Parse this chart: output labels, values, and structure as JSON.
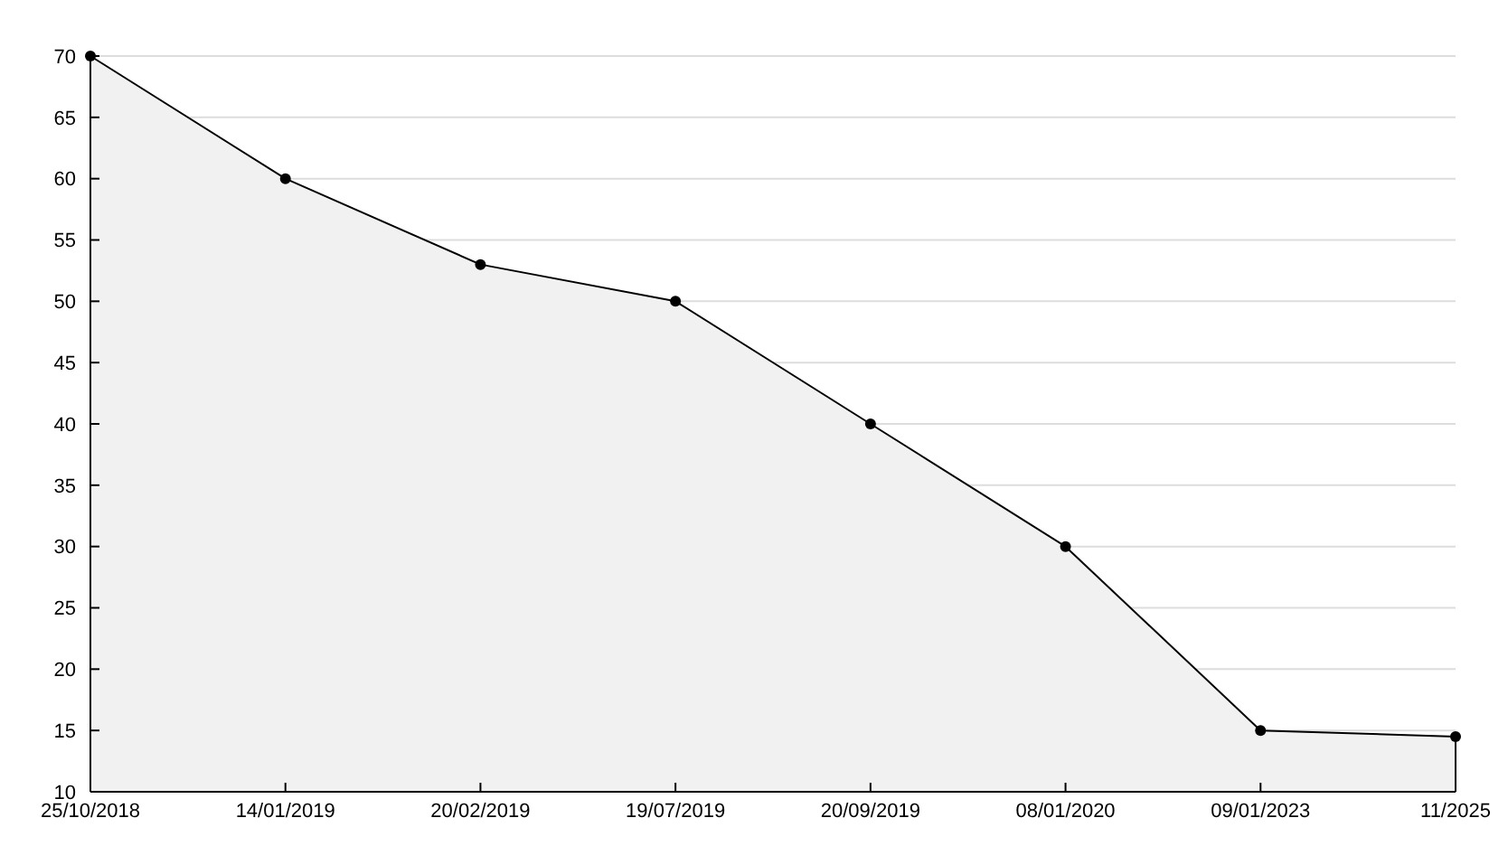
{
  "chart_data": {
    "type": "area",
    "categories": [
      "25/10/2018",
      "14/01/2019",
      "20/02/2019",
      "19/07/2019",
      "20/09/2019",
      "08/01/2020",
      "09/01/2023",
      "11/2025"
    ],
    "series": [
      {
        "color": "#000000",
        "values": [
          70,
          60,
          53,
          50,
          40,
          30,
          15,
          14.5
        ]
      }
    ],
    "ylim": [
      10,
      70
    ],
    "yticks": [
      10,
      15,
      20,
      25,
      30,
      35,
      40,
      45,
      50,
      55,
      60,
      65,
      70
    ],
    "grid": "y",
    "marker": "circle",
    "line_style": "solid"
  }
}
